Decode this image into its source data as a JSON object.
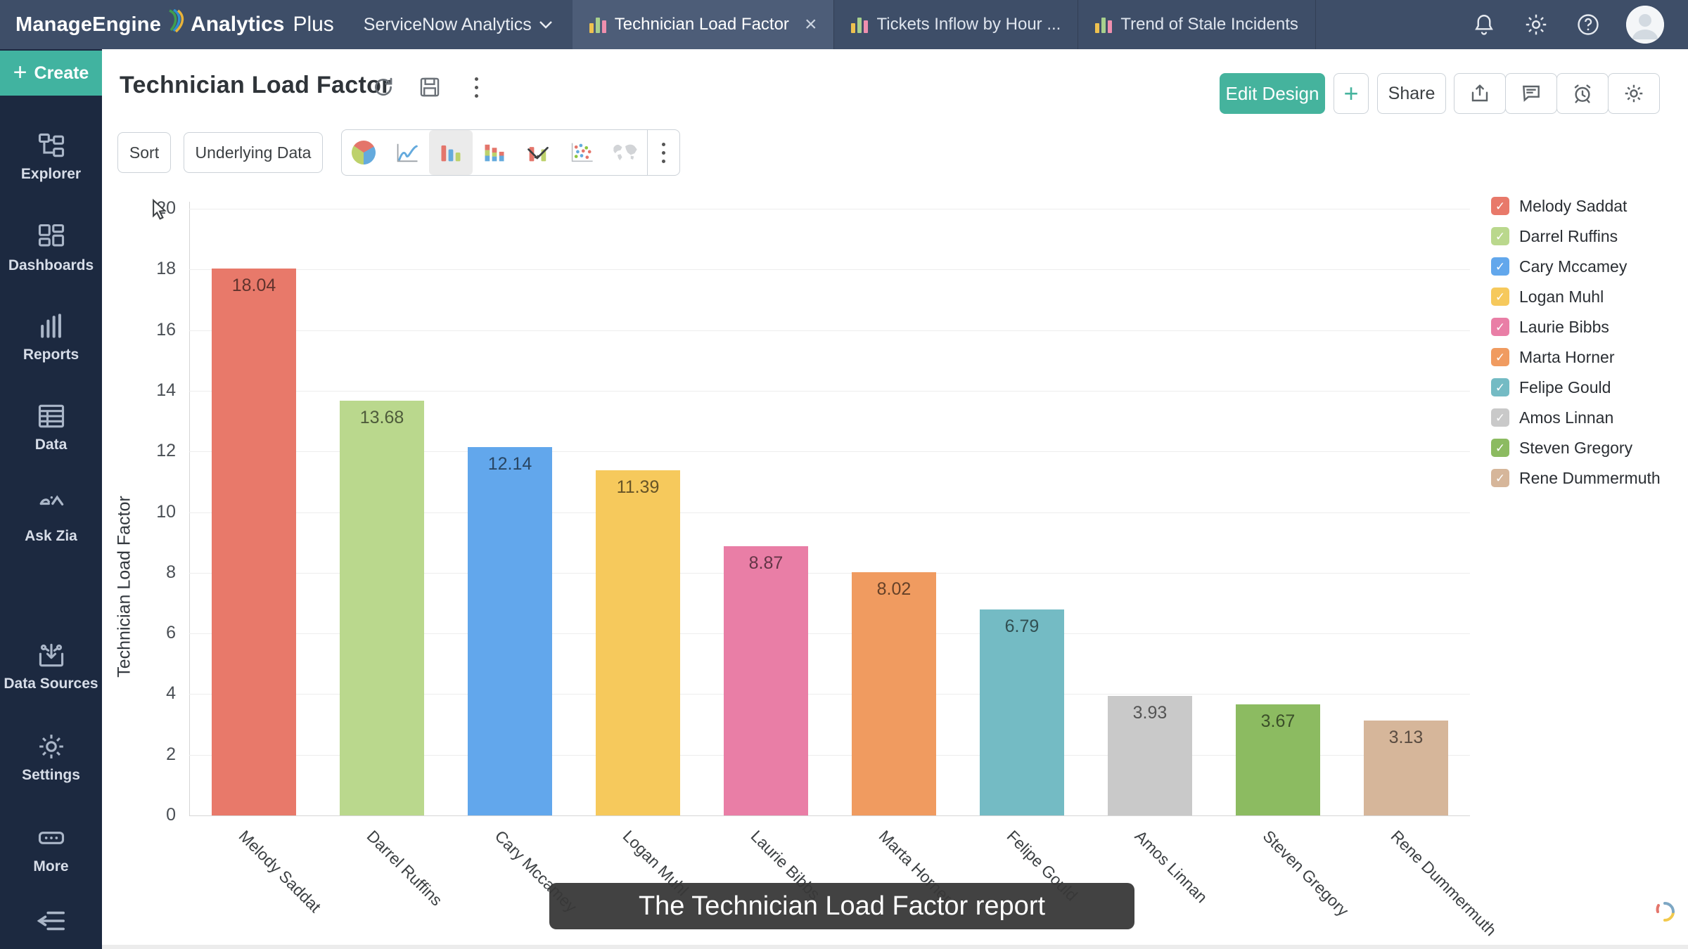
{
  "topbar": {
    "brand": "ManageEngine",
    "product": "Analytics",
    "product_suffix": "Plus",
    "workspace_label": "ServiceNow Analytics",
    "tabs": [
      {
        "label": "Technician Load Factor",
        "active": true,
        "closable": true
      },
      {
        "label": "Tickets Inflow by Hour ...",
        "active": false
      },
      {
        "label": "Trend of Stale Incidents",
        "active": false
      }
    ],
    "close_glyph": "×"
  },
  "sidebar": {
    "create_label": "Create",
    "create_plus": "+",
    "items": [
      {
        "label": "Explorer"
      },
      {
        "label": "Dashboards"
      },
      {
        "label": "Reports"
      },
      {
        "label": "Data"
      },
      {
        "label": "Ask Zia"
      },
      {
        "label": "Data Sources"
      },
      {
        "label": "Settings"
      },
      {
        "label": "More"
      }
    ]
  },
  "header": {
    "title": "Technician Load Factor",
    "edit_design_label": "Edit Design",
    "plus_label": "+",
    "share_label": "Share"
  },
  "toolbar": {
    "sort_label": "Sort",
    "underlying_data_label": "Underlying Data",
    "chart_types": [
      "pie",
      "line",
      "bar",
      "stacked-bar",
      "bar-line-combo",
      "scatter",
      "map"
    ],
    "selected_chart_type": "bar"
  },
  "chart_data": {
    "type": "bar",
    "title": "Technician Load Factor",
    "categories": [
      "Melody Saddat",
      "Darrel Ruffins",
      "Cary Mccamey",
      "Logan Muhl",
      "Laurie Bibbs",
      "Marta Horner",
      "Felipe Gould",
      "Amos Linnan",
      "Steven Gregory",
      "Rene Dummermuth"
    ],
    "values": [
      18.04,
      13.68,
      12.14,
      11.39,
      8.87,
      8.02,
      6.79,
      3.93,
      3.67,
      3.13
    ],
    "colors": [
      "#e8796a",
      "#bad88d",
      "#62a7ec",
      "#f6c95c",
      "#e97ea6",
      "#f09b60",
      "#74bbc4",
      "#c9c9c9",
      "#8cbb61",
      "#d6b69a"
    ],
    "xlabel": "",
    "ylabel": "Technician Load Factor",
    "ylim": [
      0,
      20
    ],
    "yticks": [
      0,
      2,
      4,
      6,
      8,
      10,
      12,
      14,
      16,
      18,
      20
    ],
    "grid": true,
    "legend_position": "right",
    "legend_checked": true
  },
  "caption": "The Technician Load Factor report",
  "colors": {
    "accent_teal": "#45b39d",
    "topbar_bg": "#3e4e68",
    "active_tab_bg": "#4d5d78",
    "sidebar_bg": "#1c2940",
    "caption_bg": "#383838"
  }
}
